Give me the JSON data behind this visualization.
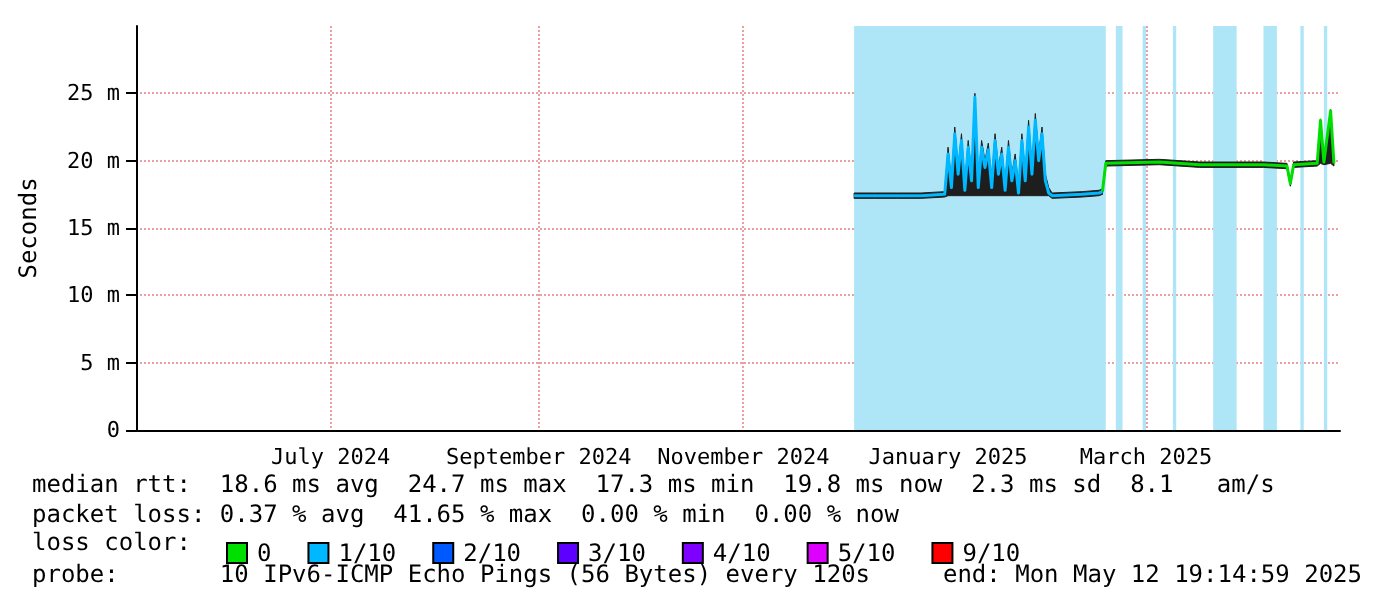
{
  "chart_data": {
    "type": "line",
    "ylabel": "Seconds",
    "legend_title": "loss color:",
    "legend": "bottom left",
    "grid": true,
    "marker": "none",
    "xlim": [
      "2024-05-19",
      "2025-05-12T19:15"
    ],
    "xticks": [
      {
        "value": "2024-07-16",
        "label": "July 2024"
      },
      {
        "value": "2024-09-16",
        "label": "September 2024"
      },
      {
        "value": "2024-11-16",
        "label": "November 2024"
      },
      {
        "value": "2025-01-16",
        "label": "January 2025"
      },
      {
        "value": "2025-03-16",
        "label": "March 2025"
      }
    ],
    "ylim": [
      0,
      30
    ],
    "yticks": [
      0,
      {
        "value": 5,
        "label": "5 m"
      },
      {
        "value": 10,
        "label": "10 m"
      },
      {
        "value": 15,
        "label": "15 m"
      },
      {
        "value": 20,
        "label": "20 m"
      },
      {
        "value": 25,
        "label": "25 m"
      }
    ],
    "series": [
      {
        "name": "0",
        "color": "#00e000",
        "x": [
          "2025-03-03",
          "2025-03-04",
          "2025-03-20",
          "2025-04-01",
          "2025-04-20",
          "2025-04-27",
          "2025-04-28",
          "2025-04-29",
          "2025-05-06",
          "2025-05-07",
          "2025-05-08",
          "2025-05-10",
          "2025-05-11"
        ],
        "values": [
          17.7,
          19.8,
          19.9,
          19.7,
          19.7,
          19.6,
          18.3,
          19.7,
          19.8,
          23,
          19.9,
          23.7,
          19.8
        ],
        "lower": [
          17.5,
          19.6,
          19.7,
          19.5,
          19.5,
          19.4,
          18.1,
          19.5,
          19.6,
          19.8,
          19.7,
          19.8,
          19.6
        ],
        "upper": [
          17.9,
          20,
          20.1,
          19.9,
          19.9,
          19.8,
          18.5,
          19.9,
          20,
          23.1,
          20.1,
          23.8,
          20
        ]
      },
      {
        "name": "1/10",
        "color": "#00b8ff",
        "x": [
          "2024-12-19",
          "2024-12-25",
          "2025-01-01",
          "2025-01-08",
          "2025-01-15",
          "2025-01-16",
          "2025-01-17",
          "2025-01-18",
          "2025-01-19",
          "2025-01-20",
          "2025-01-21",
          "2025-01-22",
          "2025-01-23",
          "2025-01-24",
          "2025-01-25",
          "2025-01-26",
          "2025-01-27",
          "2025-01-28",
          "2025-01-29",
          "2025-01-30",
          "2025-01-31",
          "2025-02-01",
          "2025-02-02",
          "2025-02-03",
          "2025-02-04",
          "2025-02-05",
          "2025-02-06",
          "2025-02-07",
          "2025-02-08",
          "2025-02-09",
          "2025-02-10",
          "2025-02-11",
          "2025-02-12",
          "2025-02-13",
          "2025-02-14",
          "2025-02-15",
          "2025-02-16",
          "2025-02-25",
          "2025-03-02",
          "2025-03-03"
        ],
        "values": [
          17.4,
          17.4,
          17.4,
          17.4,
          17.5,
          20.5,
          18,
          22,
          19,
          21.5,
          17.8,
          21,
          18.5,
          24.7,
          18,
          21,
          19.5,
          20.8,
          18,
          21.5,
          19,
          20.5,
          17.8,
          21,
          18.5,
          20,
          17.6,
          21.5,
          18.5,
          22.5,
          19,
          23,
          20,
          22,
          18.5,
          17.6,
          17.4,
          17.5,
          17.6,
          17.7
        ],
        "lower": [
          17.2,
          17.2,
          17.2,
          17.2,
          17.3,
          17.4,
          17.4,
          17.4,
          17.4,
          17.4,
          17.4,
          17.4,
          17.4,
          17.4,
          17.4,
          17.4,
          17.4,
          17.4,
          17.4,
          17.4,
          17.4,
          17.4,
          17.4,
          17.4,
          17.4,
          17.4,
          17.4,
          17.4,
          17.4,
          17.4,
          17.4,
          17.4,
          17.4,
          17.4,
          17.4,
          17.4,
          17.2,
          17.3,
          17.4,
          17.5
        ],
        "upper": [
          17.6,
          17.6,
          17.6,
          17.6,
          17.7,
          21,
          18.5,
          22.5,
          19.5,
          22,
          18.3,
          21.5,
          19,
          25,
          18.5,
          21.5,
          20,
          21.3,
          18.5,
          22,
          19.5,
          21,
          18.3,
          21.5,
          19,
          20.5,
          18.1,
          22,
          19,
          23,
          19.5,
          23.5,
          20.5,
          22.5,
          19,
          18,
          17.6,
          17.7,
          17.8,
          17.9
        ]
      },
      {
        "name": "2/10",
        "color": "#0059ff"
      },
      {
        "name": "3/10",
        "color": "#5e00ff"
      },
      {
        "name": "4/10",
        "color": "#7e00ff"
      },
      {
        "name": "5/10",
        "color": "#dd00ff"
      },
      {
        "name": "9/10",
        "color": "#ff0000"
      }
    ],
    "bands": [
      {
        "axis": "x",
        "from": "2024-12-19",
        "to": "2025-03-04",
        "color": "#aee6f8"
      },
      {
        "axis": "x",
        "from": "2025-03-07",
        "to": "2025-03-09",
        "color": "#aee6f8"
      },
      {
        "axis": "x",
        "from": "2025-03-15",
        "to": "2025-03-16",
        "color": "#aee6f8"
      },
      {
        "axis": "x",
        "from": "2025-03-24",
        "to": "2025-03-25",
        "color": "#aee6f8"
      },
      {
        "axis": "x",
        "from": "2025-04-05",
        "to": "2025-04-12",
        "color": "#aee6f8"
      },
      {
        "axis": "x",
        "from": "2025-04-20",
        "to": "2025-04-24",
        "color": "#aee6f8"
      },
      {
        "axis": "x",
        "from": "2025-05-01",
        "to": "2025-05-02",
        "color": "#aee6f8"
      },
      {
        "axis": "x",
        "from": "2025-05-08",
        "to": "2025-05-09",
        "color": "#aee6f8"
      }
    ],
    "annotations": [
      "median rtt:  18.6 ms avg  24.7 ms max  17.3 ms min  19.8 ms now  2.3 ms sd  8.1   am/s",
      "packet loss: 0.37 % avg  41.65 % max  0.00 % min  0.00 % now",
      "probe:       10 IPv6-ICMP Echo Pings (56 Bytes) every 120s",
      "end: Mon May 12 19:14:59 2025"
    ]
  }
}
